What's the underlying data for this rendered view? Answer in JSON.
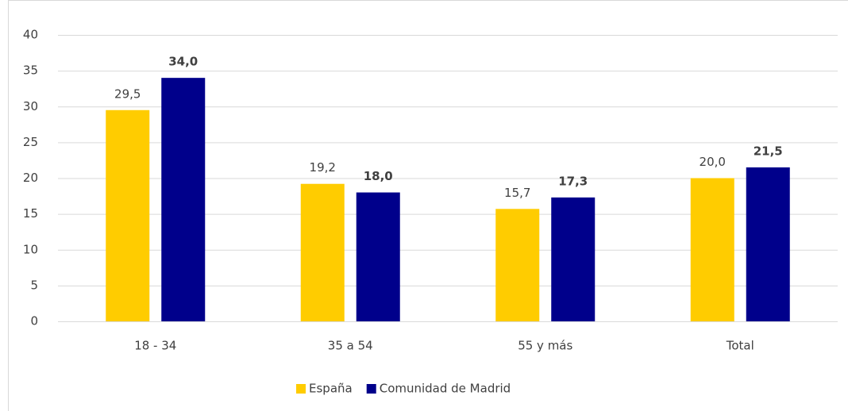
{
  "chart_data": {
    "type": "bar",
    "categories": [
      "18 - 34",
      "35 a 54",
      "55 y más",
      "Total"
    ],
    "series": [
      {
        "name": "España",
        "color": "#ffcc00",
        "values": [
          29.5,
          19.2,
          15.7,
          20.0
        ],
        "value_labels": [
          "29,5",
          "19,2",
          "15,7",
          "20,0"
        ]
      },
      {
        "name": "Comunidad de Madrid",
        "color": "#00008b",
        "values": [
          34.0,
          18.0,
          17.3,
          21.5
        ],
        "value_labels": [
          "34,0",
          "18,0",
          "17,3",
          "21,5"
        ]
      }
    ],
    "ylim": [
      0,
      40
    ],
    "yticks": [
      0,
      5,
      10,
      15,
      20,
      25,
      30,
      35,
      40
    ],
    "grid": true,
    "legend": "bottom"
  }
}
